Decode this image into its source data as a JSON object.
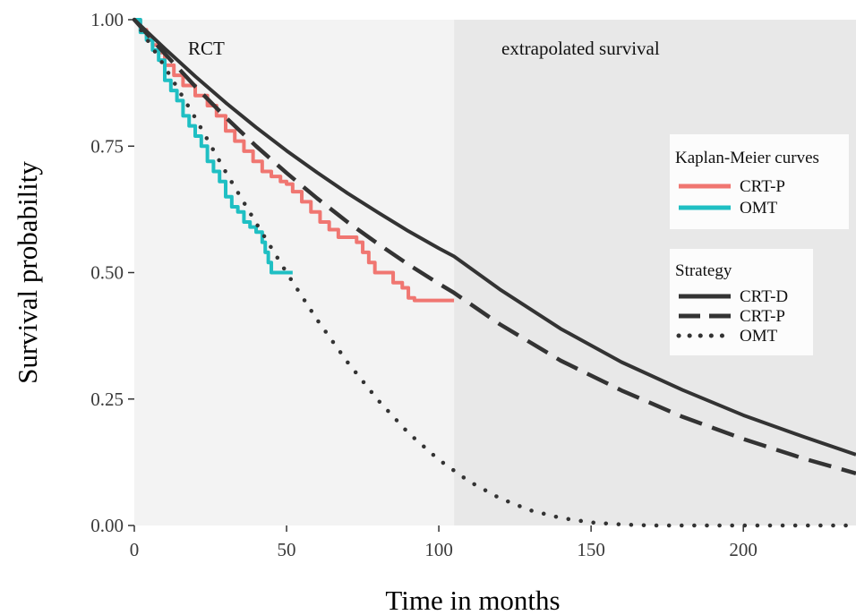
{
  "chart_data": {
    "type": "line",
    "xlabel": "Time in months",
    "ylabel": "Survival probability",
    "xlim": [
      0,
      237
    ],
    "ylim": [
      0,
      1
    ],
    "x_ticks": [
      "0",
      "50",
      "100",
      "150",
      "200"
    ],
    "y_ticks": [
      "0.00",
      "0.25",
      "0.50",
      "0.75",
      "1.00"
    ],
    "regions": [
      {
        "label": "RCT",
        "x_from": 0,
        "x_to": 105,
        "color": "#f3f3f3"
      },
      {
        "label": "extrapolated survival",
        "x_from": 105,
        "x_to": 237,
        "color": "#e8e8e8"
      }
    ],
    "legends": [
      {
        "title": "Kaplan-Meier curves",
        "placement": "right",
        "entries": [
          "CRT-P",
          "OMT"
        ]
      },
      {
        "title": "Strategy",
        "placement": "right",
        "entries": [
          "CRT-D",
          "CRT-P",
          "OMT"
        ]
      }
    ],
    "series": [
      {
        "name": "CRT-D",
        "group": "Strategy",
        "style": "solid",
        "color": "#333333",
        "x": [
          0,
          10,
          20,
          30,
          40,
          50,
          60,
          70,
          80,
          90,
          100,
          105,
          120,
          140,
          160,
          180,
          200,
          220,
          237
        ],
        "y": [
          1.0,
          0.943,
          0.888,
          0.836,
          0.787,
          0.741,
          0.698,
          0.657,
          0.619,
          0.582,
          0.548,
          0.532,
          0.467,
          0.389,
          0.323,
          0.268,
          0.218,
          0.175,
          0.14
        ]
      },
      {
        "name": "CRT-P",
        "group": "Strategy",
        "style": "dashed",
        "color": "#333333",
        "x": [
          0,
          10,
          20,
          30,
          40,
          50,
          60,
          70,
          80,
          90,
          100,
          105,
          120,
          140,
          160,
          180,
          200,
          220,
          237
        ],
        "y": [
          1.0,
          0.933,
          0.868,
          0.807,
          0.75,
          0.697,
          0.647,
          0.6,
          0.557,
          0.516,
          0.478,
          0.46,
          0.398,
          0.326,
          0.267,
          0.215,
          0.171,
          0.132,
          0.103
        ]
      },
      {
        "name": "OMT",
        "group": "Strategy",
        "style": "dotted",
        "color": "#333333",
        "x": [
          0,
          10,
          20,
          30,
          40,
          50,
          60,
          70,
          80,
          90,
          100,
          110,
          120,
          130,
          140,
          150,
          160,
          170,
          180,
          200,
          220,
          237
        ],
        "y": [
          1.0,
          0.907,
          0.806,
          0.699,
          0.598,
          0.5,
          0.407,
          0.323,
          0.248,
          0.183,
          0.13,
          0.087,
          0.054,
          0.03,
          0.015,
          0.006,
          0.002,
          0.0,
          0.0,
          0.0,
          0.0,
          0.0
        ]
      },
      {
        "name": "CRT-P",
        "group": "Kaplan-Meier curves",
        "style": "step",
        "color": "#f07671",
        "x": [
          0,
          2,
          4,
          6,
          8,
          10,
          13,
          16,
          20,
          24,
          27,
          30,
          33,
          36,
          39,
          42,
          45,
          48,
          50,
          52,
          55,
          58,
          61,
          64,
          67,
          70,
          73,
          75,
          77,
          79,
          82,
          85,
          88,
          90,
          92,
          95,
          100,
          105
        ],
        "y": [
          1.0,
          0.98,
          0.965,
          0.95,
          0.935,
          0.91,
          0.89,
          0.87,
          0.85,
          0.83,
          0.81,
          0.78,
          0.76,
          0.74,
          0.72,
          0.7,
          0.69,
          0.68,
          0.675,
          0.66,
          0.64,
          0.62,
          0.6,
          0.585,
          0.57,
          0.57,
          0.56,
          0.54,
          0.52,
          0.5,
          0.5,
          0.48,
          0.47,
          0.45,
          0.445,
          0.445,
          0.445,
          0.445
        ]
      },
      {
        "name": "OMT",
        "group": "Kaplan-Meier curves",
        "style": "step",
        "color": "#1fbfc3",
        "x": [
          0,
          2,
          4,
          6,
          8,
          10,
          12,
          14,
          16,
          18,
          20,
          22,
          24,
          26,
          28,
          30,
          32,
          34,
          36,
          38,
          40,
          42,
          43,
          44,
          45,
          46,
          47,
          48,
          50,
          52
        ],
        "y": [
          1.0,
          0.975,
          0.96,
          0.94,
          0.92,
          0.88,
          0.86,
          0.84,
          0.81,
          0.79,
          0.77,
          0.75,
          0.72,
          0.7,
          0.68,
          0.65,
          0.63,
          0.62,
          0.6,
          0.59,
          0.58,
          0.56,
          0.54,
          0.52,
          0.5,
          0.5,
          0.5,
          0.5,
          0.5,
          0.5
        ]
      }
    ]
  }
}
